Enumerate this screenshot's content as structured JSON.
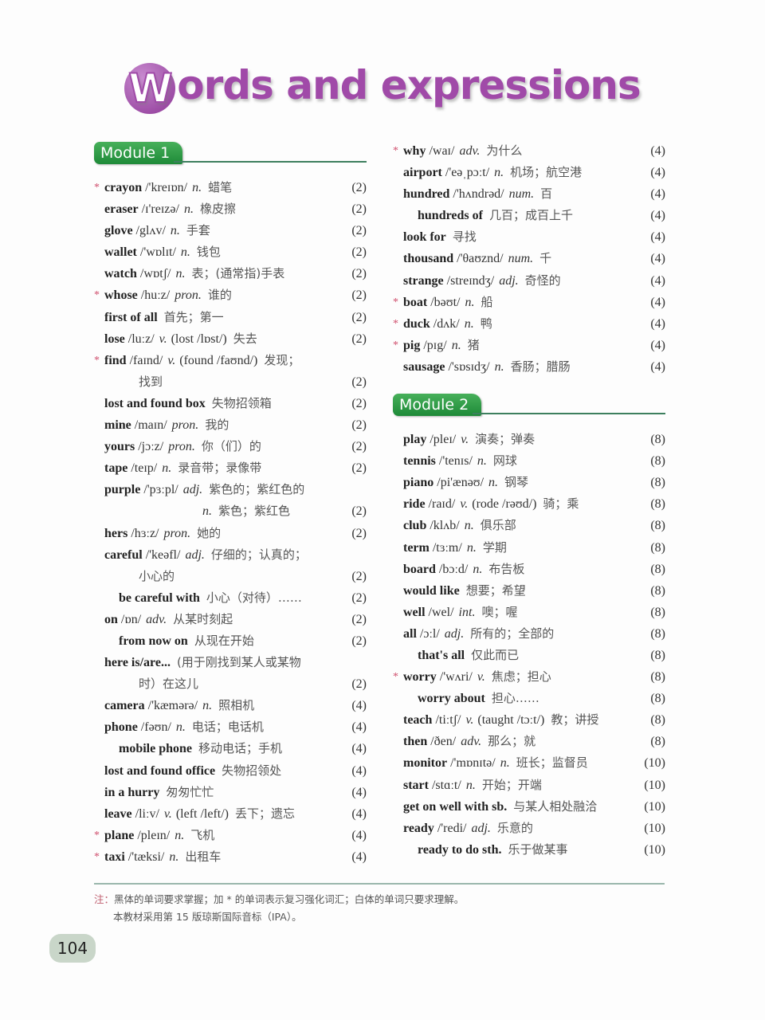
{
  "title": {
    "first_letter": "W",
    "rest": "ords and expressions"
  },
  "colors": {
    "title": "#a04aa8",
    "module_tab": "#2e9a45",
    "star": "#d0506e"
  },
  "left": {
    "module": "Module 1",
    "entries": [
      {
        "star": "*",
        "word": "crayon",
        "phon": " /'kreɪɒn/",
        "pos": "n.",
        "cn": "蜡笔",
        "page": "(2)"
      },
      {
        "word": "eraser",
        "phon": " /ɪ'reɪzə/",
        "pos": "n.",
        "cn": "橡皮擦",
        "page": "(2)"
      },
      {
        "word": "glove",
        "phon": " /glʌv/",
        "pos": "n.",
        "cn": "手套",
        "page": "(2)"
      },
      {
        "word": "wallet",
        "phon": " /'wɒlɪt/",
        "pos": "n.",
        "cn": "钱包",
        "page": "(2)"
      },
      {
        "word": "watch",
        "phon": " /wɒtʃ/",
        "pos": "n.",
        "cn": "表；(通常指)手表",
        "page": "(2)"
      },
      {
        "star": "*",
        "word": "whose",
        "phon": " /huːz/",
        "pos": "pron.",
        "cn": "谁的",
        "page": "(2)"
      },
      {
        "word": "first of all",
        "cn": "首先；第一",
        "page": "(2)"
      },
      {
        "word": "lose",
        "phon": " /luːz/",
        "pos": "v.",
        "extra": "(lost /lɒst/)",
        "cn": "失去",
        "page": "(2)"
      },
      {
        "star": "*",
        "word": "find",
        "phon": " /faɪnd/",
        "pos": "v.",
        "extra": "(found /faʊnd/)",
        "cn": "发现；",
        "cont": "找到",
        "page": "(2)"
      },
      {
        "word": "lost and found box",
        "cn": "失物招领箱",
        "page": "(2)"
      },
      {
        "word": "mine",
        "phon": " /maɪn/",
        "pos": "pron.",
        "cn": "我的",
        "page": "(2)"
      },
      {
        "word": "yours",
        "phon": " /jɔːz/",
        "pos": "pron.",
        "cn": "你（们）的",
        "page": "(2)"
      },
      {
        "word": "tape",
        "phon": " /teɪp/",
        "pos": "n.",
        "cn": "录音带；录像带",
        "page": "(2)"
      },
      {
        "word": "purple",
        "phon": " /'pɜːpl/",
        "pos": "adj.",
        "cn": "紫色的；紫红色的",
        "cont_pos": "n.",
        "cont": "紫色；紫红色",
        "page": "(2)"
      },
      {
        "word": "hers",
        "phon": " /hɜːz/",
        "pos": "pron.",
        "cn": "她的",
        "page": "(2)"
      },
      {
        "word": "careful",
        "phon": " /'keəfl/",
        "pos": "adj.",
        "cn": "仔细的；认真的；",
        "cont": "小心的",
        "page": "(2)"
      },
      {
        "indent": true,
        "word": "be careful with",
        "cn": "小心（对待）……",
        "page": "(2)"
      },
      {
        "word": "on",
        "phon": " /ɒn/",
        "pos": "adv.",
        "cn": "从某时刻起",
        "page": "(2)"
      },
      {
        "indent": true,
        "word": "from now on",
        "cn": "从现在开始",
        "page": "(2)"
      },
      {
        "word": "here is/are...",
        "cn": "(用于刚找到某人或某物",
        "cont": "时）在这儿",
        "page": "(2)"
      },
      {
        "word": "camera",
        "phon": " /'kæmərə/",
        "pos": "n.",
        "cn": "照相机",
        "page": "(4)"
      },
      {
        "word": "phone",
        "phon": " /fəʊn/",
        "pos": "n.",
        "cn": "电话；电话机",
        "page": "(4)"
      },
      {
        "indent": true,
        "word": "mobile phone",
        "cn": "移动电话；手机",
        "page": "(4)"
      },
      {
        "word": "lost and found office",
        "cn": "失物招领处",
        "page": "(4)"
      },
      {
        "word": "in a hurry",
        "cn": "匆匆忙忙",
        "page": "(4)"
      },
      {
        "word": "leave",
        "phon": " /liːv/",
        "pos": "v.",
        "extra": "(left /left/)",
        "cn": "丢下；遗忘",
        "page": "(4)"
      },
      {
        "star": "*",
        "word": "plane",
        "phon": " /pleɪn/",
        "pos": "n.",
        "cn": "飞机",
        "page": "(4)"
      },
      {
        "star": "*",
        "word": "taxi",
        "phon": " /'tæksi/",
        "pos": "n.",
        "cn": "出租车",
        "page": "(4)"
      }
    ]
  },
  "right_top": {
    "entries": [
      {
        "star": "*",
        "word": "why",
        "phon": " /waɪ/",
        "pos": "adv.",
        "cn": "为什么",
        "page": "(4)"
      },
      {
        "word": "airport",
        "phon": " /'eəˌpɔːt/",
        "pos": "n.",
        "cn": "机场；航空港",
        "page": "(4)"
      },
      {
        "word": "hundred",
        "phon": " /'hʌndrəd/",
        "pos": "num.",
        "cn": "百",
        "page": "(4)"
      },
      {
        "indent": true,
        "word": "hundreds of",
        "cn": "几百；成百上千",
        "page": "(4)"
      },
      {
        "word": "look for",
        "cn": "寻找",
        "page": "(4)"
      },
      {
        "word": "thousand",
        "phon": " /'θaʊznd/",
        "pos": "num.",
        "cn": "千",
        "page": "(4)"
      },
      {
        "word": "strange",
        "phon": " /streɪndʒ/",
        "pos": "adj.",
        "cn": "奇怪的",
        "page": "(4)"
      },
      {
        "star": "*",
        "word": "boat",
        "phon": " /bəʊt/",
        "pos": "n.",
        "cn": "船",
        "page": "(4)"
      },
      {
        "star": "*",
        "word": "duck",
        "phon": " /dʌk/",
        "pos": "n.",
        "cn": "鸭",
        "page": "(4)"
      },
      {
        "star": "*",
        "word": "pig",
        "phon": " /pɪg/",
        "pos": "n.",
        "cn": "猪",
        "page": "(4)"
      },
      {
        "word": "sausage",
        "phon": " /'sɒsɪdʒ/",
        "pos": "n.",
        "cn": "香肠；腊肠",
        "page": "(4)"
      }
    ]
  },
  "right": {
    "module": "Module 2",
    "entries": [
      {
        "word": "play",
        "phon": " /pleɪ/",
        "pos": "v.",
        "cn": "演奏；弹奏",
        "page": "(8)"
      },
      {
        "word": "tennis",
        "phon": " /'tenɪs/",
        "pos": "n.",
        "cn": "网球",
        "page": "(8)"
      },
      {
        "word": "piano",
        "phon": " /pi'ænəʊ/",
        "pos": "n.",
        "cn": "钢琴",
        "page": "(8)"
      },
      {
        "word": "ride",
        "phon": " /raɪd/",
        "pos": "v.",
        "extra": "(rode /rəʊd/)",
        "cn": "骑；乘",
        "page": "(8)"
      },
      {
        "word": "club",
        "phon": " /klʌb/",
        "pos": "n.",
        "cn": "俱乐部",
        "page": "(8)"
      },
      {
        "word": "term",
        "phon": " /tɜːm/",
        "pos": "n.",
        "cn": "学期",
        "page": "(8)"
      },
      {
        "word": "board",
        "phon": " /bɔːd/",
        "pos": "n.",
        "cn": "布告板",
        "page": "(8)"
      },
      {
        "word": "would like",
        "cn": "想要；希望",
        "page": "(8)"
      },
      {
        "word": "well",
        "phon": " /wel/",
        "pos": "int.",
        "cn": "噢；喔",
        "page": "(8)"
      },
      {
        "word": "all",
        "phon": " /ɔːl/",
        "pos": "adj.",
        "cn": "所有的；全部的",
        "page": "(8)"
      },
      {
        "indent": true,
        "word": "that's all",
        "cn": "仅此而已",
        "page": "(8)"
      },
      {
        "star": "*",
        "word": "worry",
        "phon": " /'wʌri/",
        "pos": "v.",
        "cn": "焦虑；担心",
        "page": "(8)"
      },
      {
        "indent": true,
        "word": "worry about",
        "cn": "担心……",
        "page": "(8)"
      },
      {
        "word": "teach",
        "phon": " /tiːtʃ/",
        "pos": "v.",
        "extra": "(taught /tɔːt/)",
        "cn": "教；讲授",
        "page": "(8)"
      },
      {
        "word": "then",
        "phon": " /ðen/",
        "pos": "adv.",
        "cn": "那么；就",
        "page": "(8)"
      },
      {
        "word": "monitor",
        "phon": " /'mɒnɪtə/",
        "pos": "n.",
        "cn": "班长；监督员",
        "page": "(10)"
      },
      {
        "word": "start",
        "phon": " /stɑːt/",
        "pos": "n.",
        "cn": "开始；开端",
        "page": "(10)"
      },
      {
        "word": "get on well with sb.",
        "cn": "与某人相处融洽",
        "page": "(10)"
      },
      {
        "word": "ready",
        "phon": " /'redi/",
        "pos": "adj.",
        "cn": "乐意的",
        "page": "(10)"
      },
      {
        "indent": true,
        "word": "ready to do sth.",
        "cn": "乐于做某事",
        "page": "(10)"
      }
    ]
  },
  "footer": {
    "note_label": "注：",
    "note_line1": "黑体的单词要求掌握；加 * 的单词表示复习强化词汇；白体的单词只要求理解。",
    "note_line2": "本教材采用第 15 版琼斯国际音标（IPA）。",
    "page_number": "104"
  }
}
